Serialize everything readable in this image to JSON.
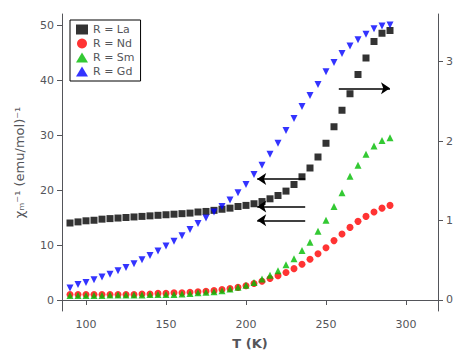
{
  "chart_data": {
    "type": "scatter",
    "title": "",
    "xlabel": "T (K)",
    "ylabel": "χₘ⁻¹ (emu/mol)⁻¹",
    "xlim": [
      85,
      320
    ],
    "xticks": [
      100,
      150,
      200,
      250,
      300
    ],
    "ylim": [
      -2,
      52
    ],
    "yticks": [
      0,
      10,
      20,
      30,
      40,
      50
    ],
    "y2lim": [
      -0.14,
      3.6
    ],
    "y2ticks": [
      0,
      1,
      2,
      3
    ],
    "grid": false,
    "legend": "upper left",
    "series": [
      {
        "name": "R = La",
        "color": "#000000",
        "marker": "square",
        "x": [
          90,
          95,
          100,
          105,
          110,
          115,
          120,
          125,
          130,
          135,
          140,
          145,
          150,
          155,
          160,
          165,
          170,
          175,
          180,
          185,
          190,
          195,
          200,
          205,
          210,
          215,
          220,
          225,
          230,
          235,
          240,
          245,
          250,
          255,
          260,
          265,
          270,
          275,
          280,
          285,
          290
        ],
        "values": [
          14.0,
          14.2,
          14.4,
          14.5,
          14.7,
          14.8,
          14.9,
          15.0,
          15.1,
          15.2,
          15.3,
          15.4,
          15.5,
          15.6,
          15.7,
          15.8,
          16.0,
          16.1,
          16.3,
          16.5,
          16.7,
          17.0,
          17.2,
          17.5,
          17.9,
          18.4,
          19.0,
          19.8,
          21.0,
          22.4,
          24.0,
          26.0,
          28.5,
          31.5,
          34.5,
          37.5,
          41.0,
          44.0,
          47.0,
          48.5,
          49.0
        ]
      },
      {
        "name": "R = Nd",
        "color": "#ff0000",
        "marker": "circle",
        "x": [
          90,
          95,
          100,
          105,
          110,
          115,
          120,
          125,
          130,
          135,
          140,
          145,
          150,
          155,
          160,
          165,
          170,
          175,
          180,
          185,
          190,
          195,
          200,
          205,
          210,
          215,
          220,
          225,
          230,
          235,
          240,
          245,
          250,
          255,
          260,
          265,
          270,
          275,
          280,
          285,
          290
        ],
        "values": [
          1.0,
          1.0,
          1.0,
          1.0,
          1.0,
          1.0,
          1.0,
          1.0,
          1.0,
          1.1,
          1.1,
          1.2,
          1.2,
          1.3,
          1.3,
          1.4,
          1.5,
          1.6,
          1.7,
          1.9,
          2.1,
          2.3,
          2.6,
          3.0,
          3.4,
          3.9,
          4.4,
          5.0,
          5.7,
          6.5,
          7.4,
          8.4,
          9.5,
          10.8,
          12.0,
          13.2,
          14.3,
          15.2,
          16.0,
          16.7,
          17.2
        ]
      },
      {
        "name": "R = Sm",
        "color": "#00bb00",
        "marker": "triangle-up",
        "x": [
          90,
          95,
          100,
          105,
          110,
          115,
          120,
          125,
          130,
          135,
          140,
          145,
          150,
          155,
          160,
          165,
          170,
          175,
          180,
          185,
          190,
          195,
          200,
          205,
          210,
          215,
          220,
          225,
          230,
          235,
          240,
          245,
          250,
          255,
          260,
          265,
          270,
          275,
          280,
          285,
          290
        ],
        "values": [
          0.8,
          0.8,
          0.8,
          0.8,
          0.8,
          0.9,
          0.9,
          0.9,
          0.9,
          0.9,
          1.0,
          1.0,
          1.0,
          1.0,
          1.1,
          1.2,
          1.3,
          1.4,
          1.5,
          1.7,
          2.0,
          2.3,
          2.7,
          3.2,
          3.8,
          4.5,
          5.3,
          6.4,
          7.5,
          9.0,
          10.5,
          12.5,
          14.5,
          17.0,
          19.5,
          22.5,
          24.5,
          26.5,
          28.0,
          29.0,
          29.5
        ]
      },
      {
        "name": "R = Gd",
        "color": "#0000ff",
        "marker": "triangle-down",
        "x": [
          90,
          95,
          100,
          105,
          110,
          115,
          120,
          125,
          130,
          135,
          140,
          145,
          150,
          155,
          160,
          165,
          170,
          175,
          180,
          185,
          190,
          195,
          200,
          205,
          210,
          215,
          220,
          225,
          230,
          235,
          240,
          245,
          250,
          255,
          260,
          265,
          270,
          275,
          280,
          285,
          290
        ],
        "values": [
          2.2,
          2.8,
          3.2,
          3.7,
          4.2,
          4.7,
          5.3,
          5.9,
          6.6,
          7.3,
          8.1,
          8.9,
          9.8,
          10.7,
          11.7,
          12.8,
          13.9,
          14.9,
          16.0,
          17.0,
          18.2,
          19.5,
          21.0,
          22.8,
          24.5,
          26.5,
          28.5,
          30.8,
          33.0,
          35.2,
          37.2,
          39.2,
          41.5,
          43.2,
          44.8,
          46.2,
          47.3,
          48.3,
          49.3,
          49.8,
          50.0
        ]
      }
    ],
    "arrows": [
      {
        "from": [
          258,
          38.5
        ],
        "to": [
          290,
          38.5
        ]
      },
      {
        "from": [
          237,
          22.0
        ],
        "to": [
          207,
          22.0
        ]
      },
      {
        "from": [
          237,
          17.0
        ],
        "to": [
          207,
          17.0
        ]
      },
      {
        "from": [
          237,
          14.5
        ],
        "to": [
          207,
          14.5
        ]
      }
    ]
  }
}
